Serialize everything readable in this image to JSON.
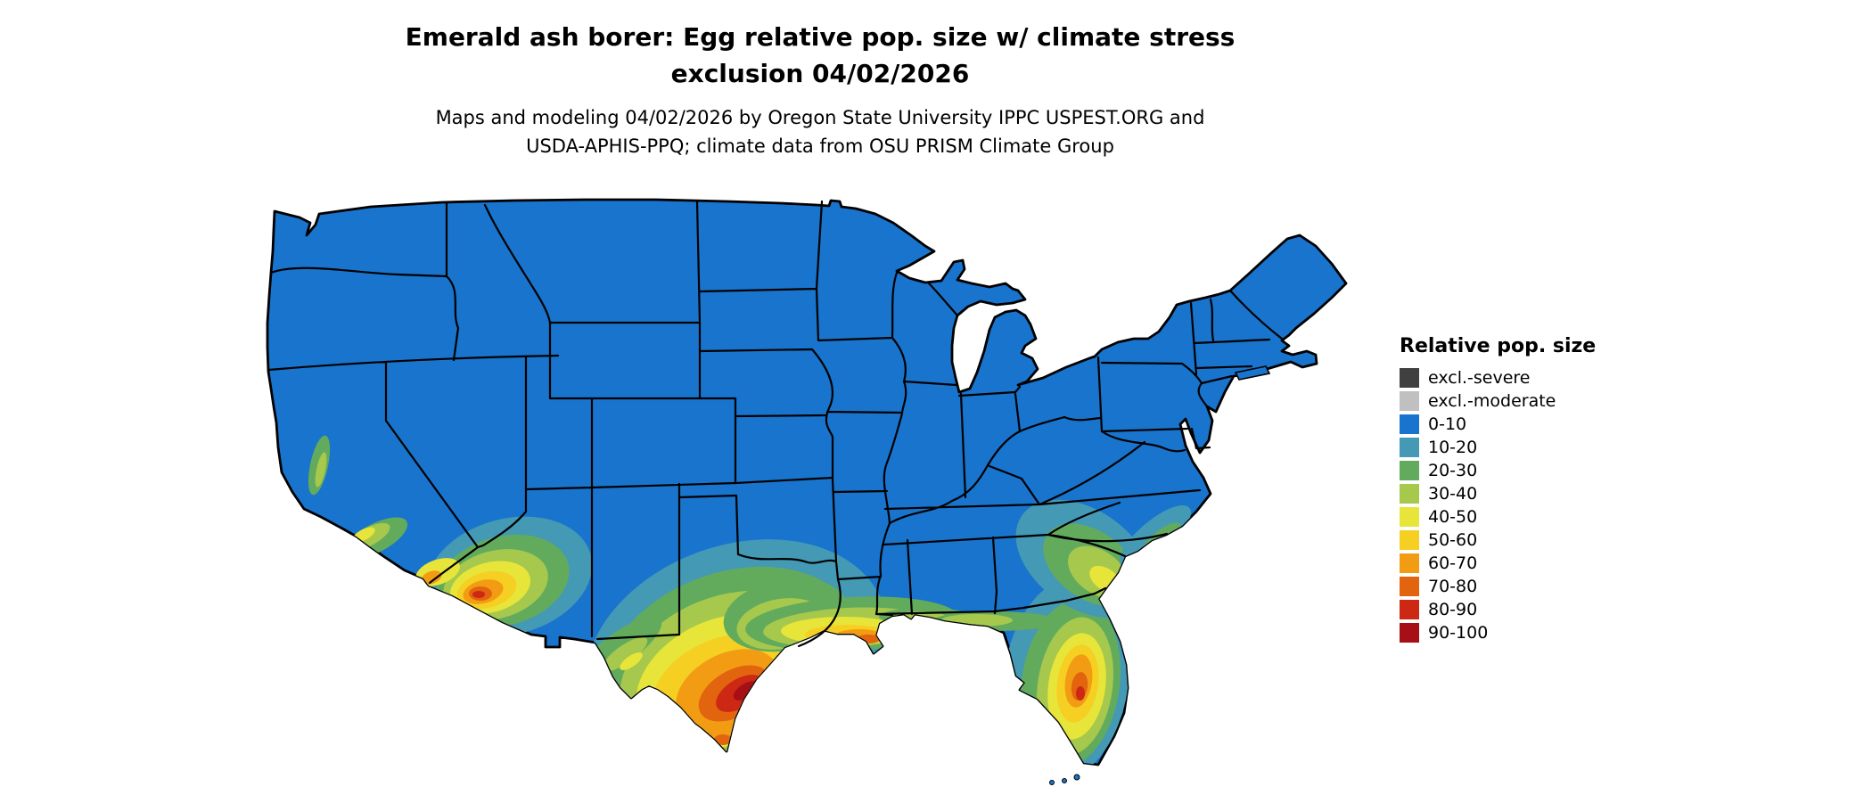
{
  "figure": {
    "title_line1": "Emerald ash borer: Egg relative pop. size w/ climate stress",
    "title_line2": "exclusion 04/02/2026",
    "subtitle_line1": "Maps and modeling 04/02/2026 by Oregon State University IPPC USPEST.ORG and",
    "subtitle_line2": "USDA-APHIS-PPQ; climate data from OSU PRISM Climate Group"
  },
  "legend": {
    "title": "Relative pop. size",
    "items": [
      {
        "label": "excl.-severe",
        "color": "#404040"
      },
      {
        "label": "excl.-moderate",
        "color": "#c0c0c0"
      },
      {
        "label": "0-10",
        "color": "#1874cd"
      },
      {
        "label": "10-20",
        "color": "#4499b5"
      },
      {
        "label": "20-30",
        "color": "#62ab5d"
      },
      {
        "label": "30-40",
        "color": "#a6c84d"
      },
      {
        "label": "40-50",
        "color": "#e7e53a"
      },
      {
        "label": "50-60",
        "color": "#f6cf23"
      },
      {
        "label": "60-70",
        "color": "#f29c14"
      },
      {
        "label": "70-80",
        "color": "#e2640e"
      },
      {
        "label": "80-90",
        "color": "#cc2814"
      },
      {
        "label": "90-100",
        "color": "#a50f15"
      }
    ]
  },
  "map_summary": {
    "type": "choropleth",
    "extent": "contiguous United States with state boundaries",
    "base_class": "0-10",
    "regions": [
      {
        "area": "most of the contiguous US",
        "class": "0-10"
      },
      {
        "area": "southern Texas coastal plain and Rio Grande valley",
        "class": "60-100 core with 20-60 fringe"
      },
      {
        "area": "Gulf Coast of Louisiana, Mississippi, Alabama",
        "class": "20-80 narrow band"
      },
      {
        "area": "central and southern Florida peninsula",
        "class": "30-90"
      },
      {
        "area": "southern Arizona desert",
        "class": "30-90"
      },
      {
        "area": "southeastern California low desert and coast",
        "class": "20-70 patches"
      },
      {
        "area": "southern New Mexico / west Texas along Rio Grande",
        "class": "20-50 patches"
      },
      {
        "area": "coastal plain of Georgia and the Carolinas",
        "class": "10-40 patches"
      }
    ]
  }
}
